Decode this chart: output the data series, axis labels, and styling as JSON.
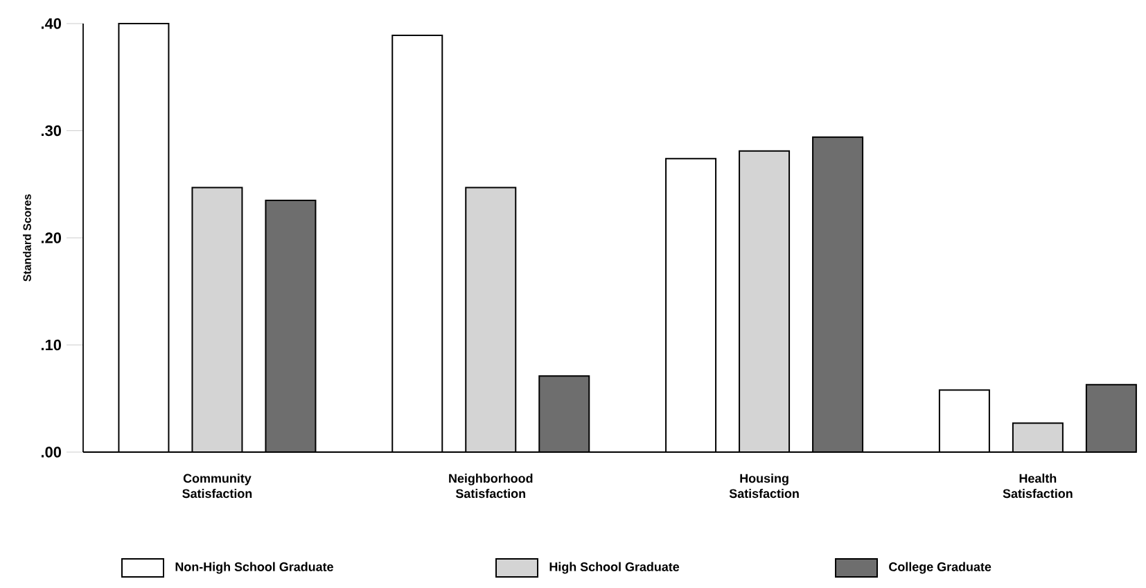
{
  "chart_data": {
    "type": "bar",
    "ylabel": "Standard Scores",
    "categories": [
      "Community Satisfaction",
      "Neighborhood Satisfaction",
      "Housing Satisfaction",
      "Health Satisfaction"
    ],
    "series": [
      {
        "name": "Non-High School Graduate",
        "color": "#ffffff",
        "values": [
          0.4,
          0.389,
          0.274,
          0.058
        ]
      },
      {
        "name": "High School Graduate",
        "color": "#d4d4d4",
        "values": [
          0.247,
          0.247,
          0.281,
          0.027
        ]
      },
      {
        "name": "College Graduate",
        "color": "#6e6e6e",
        "values": [
          0.235,
          0.071,
          0.294,
          0.063
        ]
      }
    ],
    "ylim": [
      0,
      0.4
    ],
    "yticks": [
      {
        "value": 0,
        "label": ".00"
      },
      {
        "value": 0.1,
        "label": ".10"
      },
      {
        "value": 0.2,
        "label": ".20"
      },
      {
        "value": 0.3,
        "label": ".30"
      },
      {
        "value": 0.4,
        "label": ".40"
      }
    ],
    "grid": false,
    "legend": "bottom"
  }
}
